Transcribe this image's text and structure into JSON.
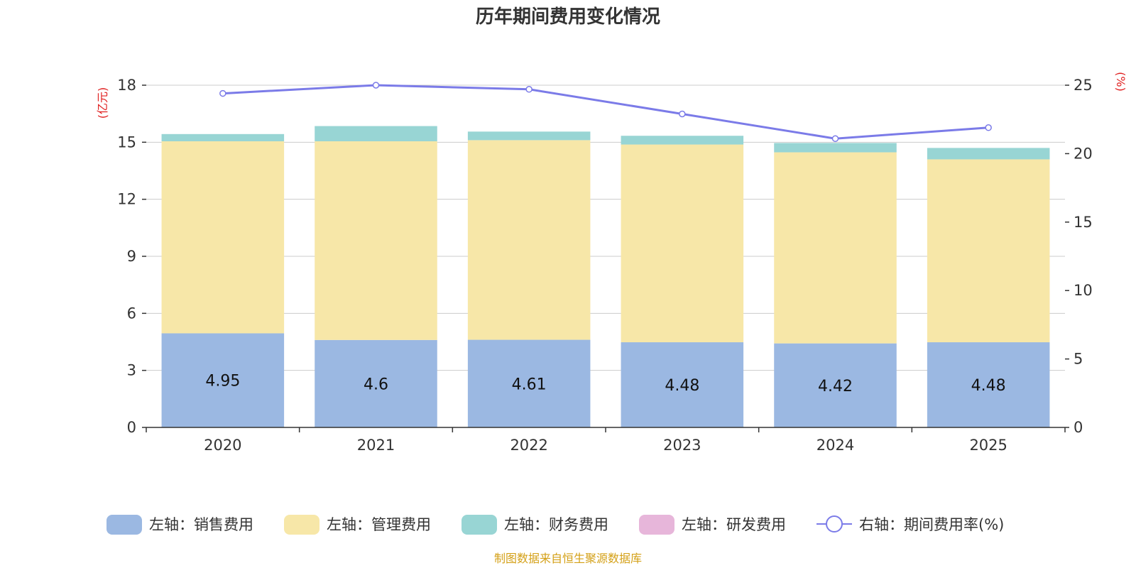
{
  "chart_data": {
    "type": "bar",
    "stacked": true,
    "title": "历年期间费用变化情况",
    "categories": [
      "2020",
      "2021",
      "2022",
      "2023",
      "2024",
      "2025"
    ],
    "y_left": {
      "unit_label": "(亿元)",
      "ylim": [
        0,
        18
      ],
      "ticks": [
        "0",
        "3",
        "6",
        "9",
        "12",
        "15",
        "18"
      ]
    },
    "y_right": {
      "unit_label": "(%)",
      "ylim": [
        0,
        25
      ],
      "ticks": [
        "0",
        "5",
        "10",
        "15",
        "20",
        "25"
      ]
    },
    "series": [
      {
        "name": "左轴：销售费用",
        "axis": "left",
        "kind": "bar",
        "color": "#9bb8e2",
        "values": [
          4.95,
          4.6,
          4.61,
          4.48,
          4.42,
          4.48
        ],
        "labels": [
          "4.95",
          "4.6",
          "4.61",
          "4.48",
          "4.42",
          "4.48"
        ]
      },
      {
        "name": "左轴：管理费用",
        "axis": "left",
        "kind": "bar",
        "color": "#f7e7a8",
        "values": [
          10.1,
          10.45,
          10.5,
          10.4,
          10.05,
          9.62
        ]
      },
      {
        "name": "左轴：财务费用",
        "axis": "left",
        "kind": "bar",
        "color": "#98d5d4",
        "values": [
          0.38,
          0.8,
          0.45,
          0.46,
          0.49,
          0.6
        ]
      },
      {
        "name": "左轴：研发费用",
        "axis": "left",
        "kind": "bar",
        "color": "#e7b6da",
        "values": [
          0,
          0,
          0,
          0,
          0,
          0
        ]
      },
      {
        "name": "右轴：期间费用率(%)",
        "axis": "right",
        "kind": "line",
        "color": "#7b7be8",
        "values": [
          24.4,
          25.0,
          24.7,
          22.9,
          21.1,
          21.9
        ]
      }
    ],
    "legend_position": "bottom",
    "grid": true
  },
  "colors": {
    "unit_label": "#e02020",
    "source": "#d4a017",
    "axis": "#333333",
    "grid": "#cccccc"
  },
  "source_text": "制图数据来自恒生聚源数据库"
}
